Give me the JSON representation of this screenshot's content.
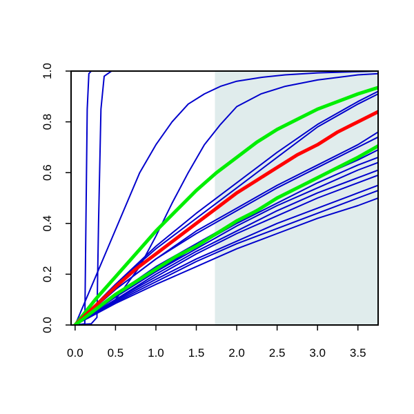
{
  "chart_data": {
    "type": "line",
    "title": "",
    "xlabel": "",
    "ylabel": "",
    "xlim": [
      -0.05,
      3.75
    ],
    "ylim": [
      0.0,
      1.0
    ],
    "xticks": [
      "0.0",
      "0.5",
      "1.0",
      "1.5",
      "2.0",
      "2.5",
      "3.0",
      "3.5"
    ],
    "yticks": [
      "0.0",
      "0.2",
      "0.4",
      "0.6",
      "0.8",
      "1.0"
    ],
    "grid": false,
    "legend": "none",
    "shaded_region": {
      "x_from": 1.73,
      "x_to": 3.75,
      "color": "#e0ecec"
    },
    "series": [
      {
        "color": "#0000cc",
        "width": "thin",
        "x": [
          0,
          0.12,
          0.13,
          0.15,
          0.17,
          0.2,
          3.75
        ],
        "y": [
          0,
          0.005,
          0.3,
          0.85,
          0.99,
          1.0,
          1.0
        ]
      },
      {
        "color": "#0000cc",
        "width": "thin",
        "x": [
          0,
          0.2,
          0.27,
          0.29,
          0.32,
          0.36,
          0.45,
          3.75
        ],
        "y": [
          0,
          0.005,
          0.03,
          0.4,
          0.85,
          0.98,
          1.0,
          1.0
        ]
      },
      {
        "color": "#0000cc",
        "width": "thin",
        "x": [
          0,
          0.2,
          0.4,
          0.6,
          0.8,
          1.0,
          1.2,
          1.4,
          1.6,
          1.8,
          2.0,
          2.3,
          2.6,
          3.0,
          3.75
        ],
        "y": [
          0,
          0.15,
          0.3,
          0.45,
          0.6,
          0.71,
          0.8,
          0.87,
          0.91,
          0.94,
          0.96,
          0.975,
          0.985,
          0.993,
          1.0
        ]
      },
      {
        "color": "#0000cc",
        "width": "thin",
        "x": [
          0,
          0.5,
          0.8,
          1.0,
          1.2,
          1.4,
          1.6,
          1.8,
          2.0,
          2.3,
          2.6,
          3.0,
          3.5,
          3.75
        ],
        "y": [
          0,
          0.1,
          0.23,
          0.35,
          0.48,
          0.6,
          0.71,
          0.79,
          0.86,
          0.91,
          0.94,
          0.965,
          0.985,
          0.99
        ]
      },
      {
        "color": "#0000cc",
        "width": "thin",
        "x": [
          0,
          0.5,
          1.0,
          1.5,
          2.0,
          2.5,
          3.0,
          3.5,
          3.75
        ],
        "y": [
          0,
          0.16,
          0.3,
          0.42,
          0.54,
          0.66,
          0.78,
          0.87,
          0.91
        ]
      },
      {
        "color": "#0000cc",
        "width": "thin",
        "x": [
          0,
          0.5,
          1.0,
          1.5,
          2.0,
          2.5,
          3.0,
          3.5,
          3.75
        ],
        "y": [
          0,
          0.16,
          0.31,
          0.44,
          0.56,
          0.68,
          0.79,
          0.88,
          0.92
        ]
      },
      {
        "color": "#0000cc",
        "width": "thin",
        "x": [
          0,
          0.5,
          1.0,
          1.5,
          2.0,
          2.5,
          3.0,
          3.5,
          3.75
        ],
        "y": [
          0,
          0.14,
          0.26,
          0.37,
          0.46,
          0.55,
          0.63,
          0.71,
          0.76
        ]
      },
      {
        "color": "#0000cc",
        "width": "thin",
        "x": [
          0,
          0.5,
          1.0,
          1.5,
          2.0,
          2.5,
          3.0,
          3.5,
          3.75
        ],
        "y": [
          0,
          0.14,
          0.26,
          0.36,
          0.45,
          0.54,
          0.62,
          0.7,
          0.74
        ]
      },
      {
        "color": "#0000cc",
        "width": "thin",
        "x": [
          0,
          0.5,
          1.0,
          1.5,
          2.0,
          2.5,
          3.0,
          3.5,
          3.75
        ],
        "y": [
          0,
          0.12,
          0.23,
          0.32,
          0.41,
          0.5,
          0.58,
          0.65,
          0.69
        ]
      },
      {
        "color": "#0000cc",
        "width": "thin",
        "x": [
          0,
          0.5,
          1.0,
          1.5,
          2.0,
          2.5,
          3.0,
          3.5,
          3.75
        ],
        "y": [
          0,
          0.11,
          0.21,
          0.31,
          0.4,
          0.48,
          0.56,
          0.63,
          0.66
        ]
      },
      {
        "color": "#0000cc",
        "width": "thin",
        "x": [
          0,
          0.5,
          1.0,
          1.5,
          2.0,
          2.5,
          3.0,
          3.5,
          3.75
        ],
        "y": [
          0,
          0.11,
          0.21,
          0.3,
          0.39,
          0.47,
          0.54,
          0.61,
          0.64
        ]
      },
      {
        "color": "#0000cc",
        "width": "thin",
        "x": [
          0,
          0.5,
          1.0,
          1.5,
          2.0,
          2.5,
          3.0,
          3.5,
          3.75
        ],
        "y": [
          0,
          0.1,
          0.2,
          0.29,
          0.37,
          0.45,
          0.52,
          0.58,
          0.61
        ]
      },
      {
        "color": "#0000cc",
        "width": "thin",
        "x": [
          0,
          0.5,
          1.0,
          1.5,
          2.0,
          2.5,
          3.0,
          3.5,
          3.75
        ],
        "y": [
          0,
          0.1,
          0.19,
          0.28,
          0.36,
          0.43,
          0.5,
          0.56,
          0.59
        ]
      },
      {
        "color": "#0000cc",
        "width": "thin",
        "x": [
          0,
          0.5,
          1.0,
          1.5,
          2.0,
          2.5,
          3.0,
          3.5,
          3.75
        ],
        "y": [
          0,
          0.095,
          0.18,
          0.26,
          0.33,
          0.4,
          0.46,
          0.52,
          0.55
        ]
      },
      {
        "color": "#0000cc",
        "width": "thin",
        "x": [
          0,
          0.5,
          1.0,
          1.5,
          2.0,
          2.5,
          3.0,
          3.5,
          3.75
        ],
        "y": [
          0,
          0.09,
          0.17,
          0.25,
          0.32,
          0.38,
          0.44,
          0.5,
          0.53
        ]
      },
      {
        "color": "#0000cc",
        "width": "thin",
        "x": [
          0,
          0.5,
          1.0,
          1.5,
          2.0,
          2.5,
          3.0,
          3.5,
          3.75
        ],
        "y": [
          0,
          0.085,
          0.16,
          0.23,
          0.3,
          0.36,
          0.42,
          0.47,
          0.5
        ]
      },
      {
        "color": "#00ee00",
        "width": "thick",
        "x": [
          0,
          0.25,
          0.5,
          0.75,
          1.0,
          1.25,
          1.5,
          1.75,
          2.0,
          2.25,
          2.5,
          2.75,
          3.0,
          3.25,
          3.5,
          3.75
        ],
        "y": [
          0,
          0.1,
          0.19,
          0.28,
          0.37,
          0.45,
          0.53,
          0.6,
          0.66,
          0.72,
          0.77,
          0.81,
          0.85,
          0.88,
          0.91,
          0.935
        ]
      },
      {
        "color": "#ff0000",
        "width": "thick",
        "x": [
          0,
          0.25,
          0.5,
          0.75,
          1.0,
          1.25,
          1.5,
          1.75,
          2.0,
          2.25,
          2.5,
          2.75,
          3.0,
          3.25,
          3.5,
          3.75
        ],
        "y": [
          0,
          0.075,
          0.15,
          0.22,
          0.28,
          0.34,
          0.4,
          0.46,
          0.52,
          0.57,
          0.62,
          0.67,
          0.71,
          0.76,
          0.8,
          0.84
        ]
      },
      {
        "color": "#00ee00",
        "width": "thick",
        "x": [
          0,
          0.25,
          0.5,
          0.75,
          1.0,
          1.25,
          1.5,
          1.75,
          2.0,
          2.25,
          2.5,
          2.75,
          3.0,
          3.25,
          3.5,
          3.75
        ],
        "y": [
          0,
          0.06,
          0.12,
          0.17,
          0.22,
          0.27,
          0.31,
          0.36,
          0.41,
          0.45,
          0.5,
          0.54,
          0.58,
          0.62,
          0.66,
          0.705
        ]
      }
    ]
  }
}
